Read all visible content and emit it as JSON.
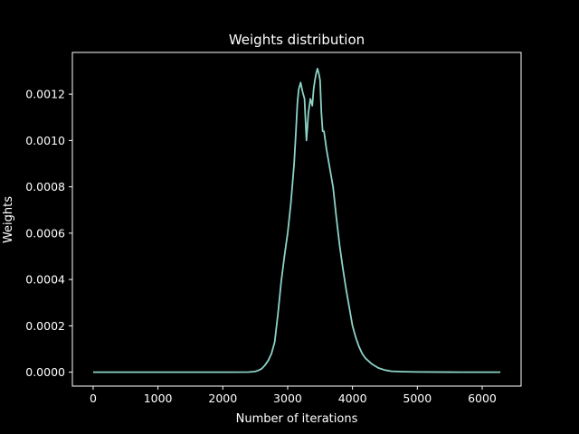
{
  "chart_data": {
    "type": "line",
    "title": "Weights distribution",
    "xlabel": "Number of iterations",
    "ylabel": "Weights",
    "xlim": [
      -320,
      6600
    ],
    "ylim": [
      -6e-05,
      0.00138
    ],
    "grid": false,
    "legend": "none",
    "colors": {
      "background": "#000000",
      "axes": "#ffffff",
      "line": "#8dd3c7"
    },
    "x_ticks": [
      {
        "value": 0,
        "label": "0"
      },
      {
        "value": 1000,
        "label": "1000"
      },
      {
        "value": 2000,
        "label": "2000"
      },
      {
        "value": 3000,
        "label": "3000"
      },
      {
        "value": 4000,
        "label": "4000"
      },
      {
        "value": 5000,
        "label": "5000"
      },
      {
        "value": 6000,
        "label": "6000"
      }
    ],
    "y_ticks": [
      {
        "value": 0.0,
        "label": "0.0000"
      },
      {
        "value": 0.0002,
        "label": "0.0002"
      },
      {
        "value": 0.0004,
        "label": "0.0004"
      },
      {
        "value": 0.0006,
        "label": "0.0006"
      },
      {
        "value": 0.0008,
        "label": "0.0008"
      },
      {
        "value": 0.001,
        "label": "0.0010"
      },
      {
        "value": 0.0012,
        "label": "0.0012"
      }
    ],
    "series": [
      {
        "color": "#8dd3c7",
        "x": [
          0,
          500,
          1000,
          1500,
          2000,
          2400,
          2500,
          2550,
          2600,
          2650,
          2700,
          2750,
          2800,
          2850,
          2900,
          2950,
          3000,
          3050,
          3100,
          3130,
          3150,
          3170,
          3200,
          3230,
          3260,
          3290,
          3320,
          3350,
          3380,
          3400,
          3420,
          3440,
          3460,
          3480,
          3500,
          3520,
          3540,
          3560,
          3600,
          3650,
          3700,
          3750,
          3800,
          3850,
          3900,
          3950,
          4000,
          4050,
          4100,
          4150,
          4200,
          4300,
          4400,
          4500,
          4600,
          4800,
          5000,
          5500,
          6000,
          6280
        ],
        "y": [
          0.0,
          0.0,
          0.0,
          0.0,
          0.0,
          5e-07,
          3e-06,
          8e-06,
          1.5e-05,
          3e-05,
          5e-05,
          8e-05,
          0.00013,
          0.00025,
          0.00039,
          0.0005,
          0.0006,
          0.00073,
          0.0009,
          0.00105,
          0.00116,
          0.00122,
          0.00125,
          0.00121,
          0.00118,
          0.001,
          0.00112,
          0.00118,
          0.00115,
          0.00122,
          0.00126,
          0.00129,
          0.00131,
          0.00129,
          0.00126,
          0.00112,
          0.00104,
          0.00104,
          0.00096,
          0.00088,
          0.0008,
          0.00067,
          0.00055,
          0.00045,
          0.00036,
          0.00028,
          0.0002,
          0.00015,
          0.00011,
          8e-05,
          6e-05,
          3.5e-05,
          1.8e-05,
          9e-06,
          4e-06,
          2e-06,
          1e-06,
          2e-07,
          0.0,
          0.0
        ]
      }
    ]
  }
}
